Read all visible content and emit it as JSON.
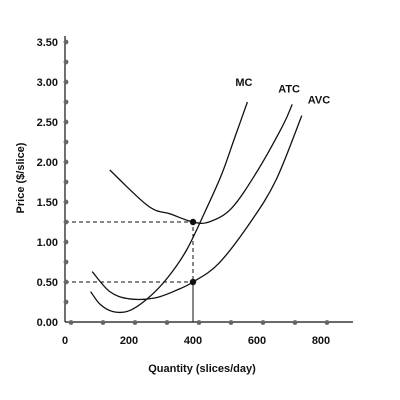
{
  "chart_data": {
    "type": "line",
    "xlabel": "Quantity (slices/day)",
    "ylabel": "Price ($/slice)",
    "xlim": [
      0,
      900
    ],
    "ylim": [
      0,
      3.5
    ],
    "x_ticks": [
      {
        "value": 0,
        "label": "0"
      },
      {
        "value": 200,
        "label": "200"
      },
      {
        "value": 400,
        "label": "400"
      },
      {
        "value": 600,
        "label": "600"
      },
      {
        "value": 800,
        "label": "800"
      }
    ],
    "y_ticks": [
      {
        "value": 0,
        "label": "0.00"
      },
      {
        "value": 0.5,
        "label": "0.50"
      },
      {
        "value": 1.0,
        "label": "1.00"
      },
      {
        "value": 1.5,
        "label": "1.50"
      },
      {
        "value": 2.0,
        "label": "2.00"
      },
      {
        "value": 2.5,
        "label": "2.50"
      },
      {
        "value": 3.0,
        "label": "3.00"
      },
      {
        "value": 3.5,
        "label": "3.50"
      }
    ],
    "series": [
      {
        "name": "MC",
        "points": [
          [
            80,
            0.38
          ],
          [
            110,
            0.22
          ],
          [
            150,
            0.13
          ],
          [
            200,
            0.14
          ],
          [
            260,
            0.3
          ],
          [
            320,
            0.55
          ],
          [
            380,
            0.9
          ],
          [
            440,
            1.4
          ],
          [
            490,
            1.85
          ],
          [
            530,
            2.3
          ],
          [
            570,
            2.75
          ]
        ]
      },
      {
        "name": "ATC",
        "points": [
          [
            140,
            1.9
          ],
          [
            260,
            1.45
          ],
          [
            330,
            1.35
          ],
          [
            400,
            1.25
          ],
          [
            450,
            1.25
          ],
          [
            520,
            1.42
          ],
          [
            600,
            1.88
          ],
          [
            680,
            2.45
          ],
          [
            710,
            2.72
          ]
        ]
      },
      {
        "name": "AVC",
        "points": [
          [
            85,
            0.63
          ],
          [
            140,
            0.38
          ],
          [
            200,
            0.29
          ],
          [
            280,
            0.3
          ],
          [
            350,
            0.4
          ],
          [
            400,
            0.5
          ],
          [
            480,
            0.73
          ],
          [
            580,
            1.25
          ],
          [
            660,
            1.78
          ],
          [
            740,
            2.58
          ]
        ]
      }
    ],
    "highlighted_points": [
      {
        "x": 400,
        "y": 1.25
      },
      {
        "x": 400,
        "y": 0.5
      }
    ],
    "grid": false,
    "legend": "inline labels at curve ends",
    "colors": {
      "line": "#111111",
      "axis_marker": "#666666"
    }
  }
}
